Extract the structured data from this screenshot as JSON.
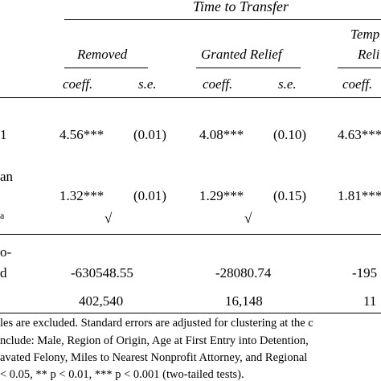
{
  "header": {
    "group_title": "Time to Transfer",
    "col_removed": "Removed",
    "col_granted": "Granted Relief",
    "col_temp_line1": "Temp",
    "col_temp_line2": "Reli",
    "sub_coeff_1": "coeff.",
    "sub_se_1": "s.e.",
    "sub_coeff_2": "coeff.",
    "sub_se_2": "s.e.",
    "sub_coeff_3": "coeff."
  },
  "row_labels": {
    "row1": "1",
    "row2a": "an",
    "row2b": "a",
    "row4a": "o-",
    "row4b": "d"
  },
  "rows": {
    "row1": {
      "c1": "4.56***",
      "s1": "(0.01)",
      "c2": "4.08***",
      "s2": "(0.10)",
      "c3": "4.63***"
    },
    "row2": {
      "c1": "1.32***",
      "s1": "(0.01)",
      "c2": "1.29***",
      "s2": "(0.15)",
      "c3": "1.81***"
    },
    "row3": {
      "c1": "√",
      "c2": "√"
    },
    "row4": {
      "c1": "-630548.55",
      "c2": "-28080.74",
      "c3": "-195"
    },
    "row5": {
      "c1": "402,540",
      "c2": "16,148",
      "c3": "11"
    }
  },
  "notes": {
    "line1": "les are excluded. Standard errors are adjusted for clustering at the c",
    "line2": "nclude: Male, Region of Origin, Age at First Entry into Detention, ",
    "line3": "avated Felony, Miles to Nearest Nonprofit Attorney, and Regional",
    "line4": " < 0.05, ** p < 0.01, *** p < 0.001 (two-tailed tests)."
  }
}
